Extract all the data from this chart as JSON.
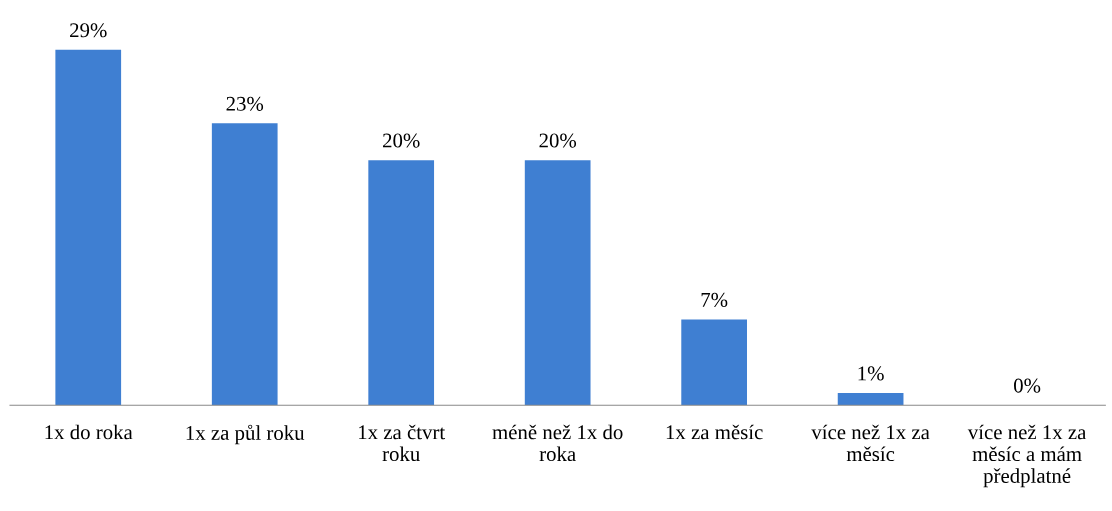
{
  "chart_data": {
    "type": "bar",
    "categories": [
      "1x do roka",
      "1x za půl roku",
      "1x za čtvrt roku",
      "méně než 1x do roka",
      "1x za měsíc",
      "více než 1x za měsíc",
      "více než 1x za měsíc a mám předplatné"
    ],
    "values": [
      29,
      23,
      20,
      20,
      7,
      1,
      0
    ],
    "value_labels": [
      "29%",
      "23%",
      "20%",
      "20%",
      "7%",
      "1%",
      "0%"
    ],
    "color": "#3f7fd2",
    "grid": false,
    "legend": false
  }
}
